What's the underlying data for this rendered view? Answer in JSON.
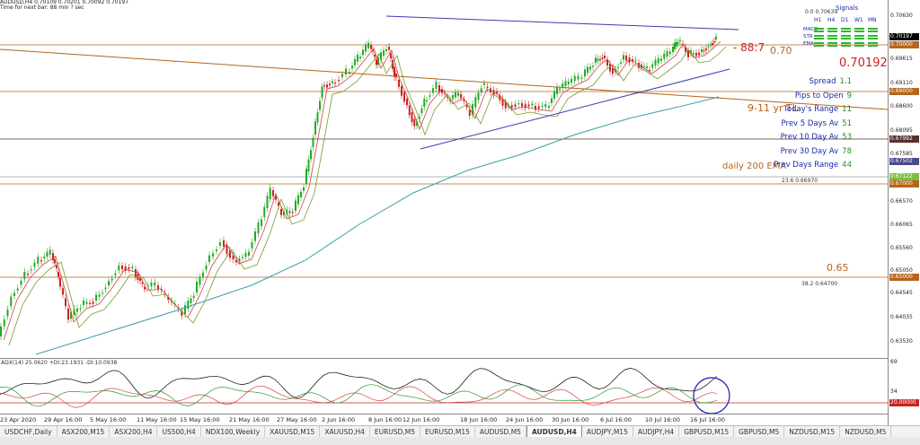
{
  "header": {
    "symbol_line": "AUDUSD,H4  0.70109 0.70201 0.70092 0.70197",
    "timer_line": "Time for next bar: 88 min ? sec"
  },
  "signals": {
    "title": "Signals",
    "timeframes": [
      "H1",
      "H4",
      "D1",
      "W1",
      "MN"
    ],
    "rows": [
      "MACD",
      "STR",
      "EMA"
    ],
    "fib_top": "0.0   0.70639"
  },
  "annotations": {
    "pips_left": "- 88:7",
    "level_070": "0.70",
    "current_price": "0.70192",
    "trendline": "9-11 yr TL",
    "ema_label": "daily 200 EMA",
    "level_065": "0.65",
    "fib_236": "23.6   0.66970",
    "fib_382": "38.2   0.64700"
  },
  "stats": [
    {
      "label": "Spread",
      "value": "1.1"
    },
    {
      "label": "Pips to Open",
      "value": "9"
    },
    {
      "label": "Today's Range",
      "value": "11"
    },
    {
      "label": "Prev 5 Days Av",
      "value": "51"
    },
    {
      "label": "Prev 10 Day Av",
      "value": "53"
    },
    {
      "label": "Prev 30 Day Av",
      "value": "78"
    },
    {
      "label": "Prev Days Range",
      "value": "44"
    }
  ],
  "price_axis": [
    {
      "label": "0.70630",
      "y": 18
    },
    {
      "label": "0.70197",
      "y": 41,
      "tag": true,
      "color": "#000000"
    },
    {
      "label": "0.70000",
      "y": 50,
      "tag": true,
      "color": "#b5651d"
    },
    {
      "label": "0.69615",
      "y": 66
    },
    {
      "label": "0.69110",
      "y": 93
    },
    {
      "label": "0.69000",
      "y": 102,
      "tag": true,
      "color": "#b5651d"
    },
    {
      "label": "0.68600",
      "y": 119
    },
    {
      "label": "0.68095",
      "y": 146
    },
    {
      "label": "0.67992",
      "y": 155,
      "tag": true,
      "color": "#5a2f2f"
    },
    {
      "label": "0.67585",
      "y": 172
    },
    {
      "label": "0.67502",
      "y": 180,
      "tag": true,
      "color": "#4a4a8a"
    },
    {
      "label": "0.67122",
      "y": 197,
      "tag": true,
      "color": "#7cbf3a"
    },
    {
      "label": "0.67000",
      "y": 205,
      "tag": true,
      "color": "#b5651d"
    },
    {
      "label": "0.66570",
      "y": 225
    },
    {
      "label": "0.66065",
      "y": 251
    },
    {
      "label": "0.65560",
      "y": 277
    },
    {
      "label": "0.65050",
      "y": 302
    },
    {
      "label": "0.65000",
      "y": 309,
      "tag": true,
      "color": "#b5651d"
    },
    {
      "label": "0.64545",
      "y": 327
    },
    {
      "label": "0.64035",
      "y": 354
    },
    {
      "label": "0.63530",
      "y": 381
    }
  ],
  "adx": {
    "title": "ADX(14) 25.0620 +DI:23.1931 -DI:10.0938",
    "levels": [
      {
        "label": "69",
        "y": 404
      },
      {
        "label": "34",
        "y": 437
      },
      {
        "label": "20.00000",
        "y": 449,
        "tag": true
      }
    ]
  },
  "x_axis": [
    "23 Apr 2020",
    "29 Apr 16:00",
    "5 May 16:00",
    "11 May 16:00",
    "15 May 16:00",
    "21 May 16:00",
    "27 May 16:00",
    "2 Jun 16:00",
    "8 Jun 16:00",
    "12 Jun 16:00",
    "18 Jun 16:00",
    "24 Jun 16:00",
    "30 Jun 16:00",
    "6 Jul 16:00",
    "10 Jul 16:00",
    "16 Jul 16:00"
  ],
  "tabs": [
    "USDCHF,Daily",
    "ASX200,M15",
    "ASX200,H4",
    "US500,H4",
    "NDX100,Weekly",
    "XAUUSD,M15",
    "XAUUSD,H4",
    "EURUSD,M5",
    "EURUSD,M15",
    "AUDUSD,M5",
    "AUDUSD,H4",
    "AUDJPY,M15",
    "AUDJPY,H4",
    "GBPUSD,M15",
    "GBPUSD,M5",
    "NZDUSD,M15",
    "NZDUSD,M5"
  ],
  "active_tab": "AUDUSD,H4",
  "colors": {
    "bull": "#22aa22",
    "bear": "#cc2222",
    "level_line": "#b5651d",
    "trend_blue": "#3b3bb5",
    "ema200": "#3a9fa5",
    "stat_label": "#1a2aa8",
    "stat_value": "#2a8a2a"
  }
}
